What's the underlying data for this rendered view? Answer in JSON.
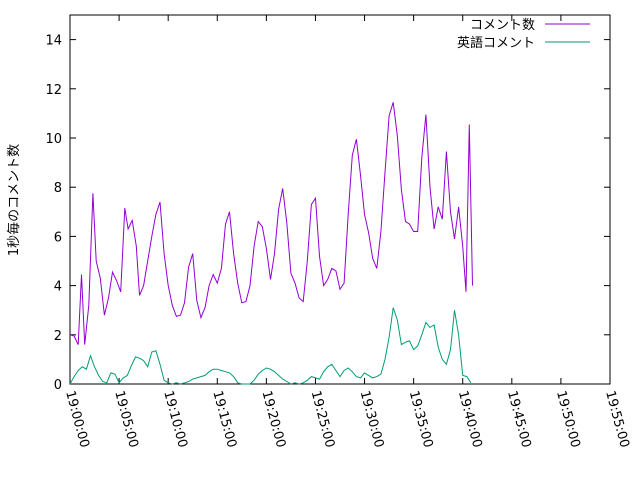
{
  "chart_data": {
    "type": "line",
    "title": "",
    "xlabel": "",
    "ylabel": "1秒毎のコメント数",
    "xlim": [
      "19:00:00",
      "19:55:00"
    ],
    "ylim": [
      0,
      15
    ],
    "xticks": [
      "19:00:00",
      "19:05:00",
      "19:10:00",
      "19:15:00",
      "19:20:00",
      "19:25:00",
      "19:30:00",
      "19:35:00",
      "19:40:00",
      "19:45:00",
      "19:50:00",
      "19:55:00"
    ],
    "yticks": [
      0,
      2,
      4,
      6,
      8,
      10,
      12,
      14
    ],
    "grid": false,
    "legend_position": "top-right",
    "series": [
      {
        "name": "コメント数",
        "color": "#9400d3",
        "points": [
          [
            "19:00:00",
            2.0
          ],
          [
            "19:00:25",
            1.95
          ],
          [
            "19:00:50",
            1.6
          ],
          [
            "19:01:10",
            4.45
          ],
          [
            "19:01:30",
            1.6
          ],
          [
            "19:01:55",
            3.2
          ],
          [
            "19:02:20",
            7.75
          ],
          [
            "19:02:40",
            5.0
          ],
          [
            "19:03:05",
            4.3
          ],
          [
            "19:03:30",
            2.8
          ],
          [
            "19:03:55",
            3.5
          ],
          [
            "19:04:20",
            4.55
          ],
          [
            "19:04:45",
            4.2
          ],
          [
            "19:05:10",
            3.75
          ],
          [
            "19:05:35",
            7.15
          ],
          [
            "19:05:55",
            6.3
          ],
          [
            "19:06:20",
            6.65
          ],
          [
            "19:06:45",
            5.6
          ],
          [
            "19:07:05",
            3.6
          ],
          [
            "19:07:30",
            4.0
          ],
          [
            "19:07:55",
            5.0
          ],
          [
            "19:08:20",
            6.0
          ],
          [
            "19:08:45",
            6.9
          ],
          [
            "19:09:10",
            7.4
          ],
          [
            "19:09:35",
            5.3
          ],
          [
            "19:10:00",
            4.0
          ],
          [
            "19:10:25",
            3.2
          ],
          [
            "19:10:50",
            2.75
          ],
          [
            "19:11:15",
            2.8
          ],
          [
            "19:11:40",
            3.3
          ],
          [
            "19:12:05",
            4.75
          ],
          [
            "19:12:30",
            5.3
          ],
          [
            "19:12:55",
            3.4
          ],
          [
            "19:13:20",
            2.7
          ],
          [
            "19:13:45",
            3.1
          ],
          [
            "19:14:10",
            4.0
          ],
          [
            "19:14:35",
            4.45
          ],
          [
            "19:15:00",
            4.1
          ],
          [
            "19:15:25",
            4.7
          ],
          [
            "19:15:50",
            6.5
          ],
          [
            "19:16:15",
            7.0
          ],
          [
            "19:16:40",
            5.3
          ],
          [
            "19:17:05",
            4.1
          ],
          [
            "19:17:30",
            3.3
          ],
          [
            "19:17:55",
            3.35
          ],
          [
            "19:18:20",
            4.0
          ],
          [
            "19:18:45",
            5.6
          ],
          [
            "19:19:10",
            6.6
          ],
          [
            "19:19:35",
            6.4
          ],
          [
            "19:20:00",
            5.5
          ],
          [
            "19:20:25",
            4.25
          ],
          [
            "19:20:50",
            5.3
          ],
          [
            "19:21:15",
            7.1
          ],
          [
            "19:21:40",
            7.95
          ],
          [
            "19:22:05",
            6.55
          ],
          [
            "19:22:30",
            4.5
          ],
          [
            "19:22:55",
            4.1
          ],
          [
            "19:23:20",
            3.5
          ],
          [
            "19:23:45",
            3.35
          ],
          [
            "19:24:10",
            5.0
          ],
          [
            "19:24:35",
            7.3
          ],
          [
            "19:25:00",
            7.55
          ],
          [
            "19:25:25",
            5.2
          ],
          [
            "19:25:50",
            4.0
          ],
          [
            "19:26:15",
            4.25
          ],
          [
            "19:26:40",
            4.7
          ],
          [
            "19:27:05",
            4.6
          ],
          [
            "19:27:30",
            3.85
          ],
          [
            "19:27:55",
            4.1
          ],
          [
            "19:28:20",
            6.9
          ],
          [
            "19:28:45",
            9.3
          ],
          [
            "19:29:10",
            9.95
          ],
          [
            "19:29:35",
            8.5
          ],
          [
            "19:30:00",
            6.9
          ],
          [
            "19:30:25",
            6.15
          ],
          [
            "19:30:50",
            5.1
          ],
          [
            "19:31:15",
            4.7
          ],
          [
            "19:31:40",
            6.2
          ],
          [
            "19:32:05",
            8.6
          ],
          [
            "19:32:30",
            10.9
          ],
          [
            "19:32:55",
            11.45
          ],
          [
            "19:33:20",
            10.1
          ],
          [
            "19:33:45",
            7.9
          ],
          [
            "19:34:10",
            6.6
          ],
          [
            "19:34:35",
            6.5
          ],
          [
            "19:35:00",
            6.2
          ],
          [
            "19:35:25",
            6.2
          ],
          [
            "19:35:50",
            9.2
          ],
          [
            "19:36:15",
            10.95
          ],
          [
            "19:36:40",
            8.0
          ],
          [
            "19:37:05",
            6.3
          ],
          [
            "19:37:30",
            7.2
          ],
          [
            "19:37:55",
            6.7
          ],
          [
            "19:38:20",
            9.45
          ],
          [
            "19:38:45",
            7.0
          ],
          [
            "19:39:10",
            5.9
          ],
          [
            "19:39:35",
            7.2
          ],
          [
            "19:40:00",
            5.6
          ],
          [
            "19:40:20",
            3.75
          ],
          [
            "19:40:40",
            10.55
          ],
          [
            "19:41:00",
            4.0
          ]
        ]
      },
      {
        "name": "英語コメント",
        "color": "#009e73",
        "points": [
          [
            "19:00:00",
            0.0
          ],
          [
            "19:00:25",
            0.3
          ],
          [
            "19:00:50",
            0.55
          ],
          [
            "19:01:15",
            0.7
          ],
          [
            "19:01:40",
            0.6
          ],
          [
            "19:02:05",
            1.15
          ],
          [
            "19:02:30",
            0.7
          ],
          [
            "19:02:55",
            0.35
          ],
          [
            "19:03:20",
            0.1
          ],
          [
            "19:03:45",
            0.05
          ],
          [
            "19:04:10",
            0.45
          ],
          [
            "19:04:35",
            0.4
          ],
          [
            "19:05:00",
            0.05
          ],
          [
            "19:05:25",
            0.25
          ],
          [
            "19:05:50",
            0.35
          ],
          [
            "19:06:15",
            0.75
          ],
          [
            "19:06:40",
            1.1
          ],
          [
            "19:07:05",
            1.05
          ],
          [
            "19:07:30",
            0.95
          ],
          [
            "19:07:55",
            0.7
          ],
          [
            "19:08:20",
            1.3
          ],
          [
            "19:08:45",
            1.35
          ],
          [
            "19:09:10",
            0.8
          ],
          [
            "19:09:35",
            0.15
          ],
          [
            "19:10:00",
            0.05
          ],
          [
            "19:10:25",
            0.0
          ],
          [
            "19:10:50",
            0.05
          ],
          [
            "19:11:15",
            0.0
          ],
          [
            "19:11:40",
            0.05
          ],
          [
            "19:12:05",
            0.1
          ],
          [
            "19:12:30",
            0.2
          ],
          [
            "19:12:55",
            0.25
          ],
          [
            "19:13:20",
            0.3
          ],
          [
            "19:13:45",
            0.35
          ],
          [
            "19:14:10",
            0.5
          ],
          [
            "19:14:35",
            0.6
          ],
          [
            "19:15:00",
            0.6
          ],
          [
            "19:15:25",
            0.55
          ],
          [
            "19:15:50",
            0.5
          ],
          [
            "19:16:15",
            0.45
          ],
          [
            "19:16:40",
            0.3
          ],
          [
            "19:17:05",
            0.05
          ],
          [
            "19:17:30",
            0.0
          ],
          [
            "19:17:55",
            0.0
          ],
          [
            "19:18:20",
            0.0
          ],
          [
            "19:18:45",
            0.15
          ],
          [
            "19:19:10",
            0.4
          ],
          [
            "19:19:35",
            0.55
          ],
          [
            "19:20:00",
            0.65
          ],
          [
            "19:20:25",
            0.6
          ],
          [
            "19:20:50",
            0.5
          ],
          [
            "19:21:15",
            0.35
          ],
          [
            "19:21:40",
            0.2
          ],
          [
            "19:22:05",
            0.1
          ],
          [
            "19:22:30",
            0.0
          ],
          [
            "19:22:55",
            0.05
          ],
          [
            "19:23:20",
            0.0
          ],
          [
            "19:23:45",
            0.05
          ],
          [
            "19:24:10",
            0.15
          ],
          [
            "19:24:35",
            0.3
          ],
          [
            "19:25:00",
            0.25
          ],
          [
            "19:25:25",
            0.2
          ],
          [
            "19:25:50",
            0.5
          ],
          [
            "19:26:15",
            0.7
          ],
          [
            "19:26:40",
            0.8
          ],
          [
            "19:27:05",
            0.55
          ],
          [
            "19:27:30",
            0.3
          ],
          [
            "19:27:55",
            0.55
          ],
          [
            "19:28:20",
            0.65
          ],
          [
            "19:28:45",
            0.5
          ],
          [
            "19:29:10",
            0.3
          ],
          [
            "19:29:35",
            0.25
          ],
          [
            "19:30:00",
            0.45
          ],
          [
            "19:30:25",
            0.35
          ],
          [
            "19:30:50",
            0.25
          ],
          [
            "19:31:15",
            0.3
          ],
          [
            "19:31:40",
            0.4
          ],
          [
            "19:32:05",
            1.0
          ],
          [
            "19:32:30",
            1.9
          ],
          [
            "19:32:55",
            3.1
          ],
          [
            "19:33:20",
            2.6
          ],
          [
            "19:33:45",
            1.6
          ],
          [
            "19:34:10",
            1.7
          ],
          [
            "19:34:35",
            1.75
          ],
          [
            "19:35:00",
            1.4
          ],
          [
            "19:35:25",
            1.55
          ],
          [
            "19:35:50",
            2.0
          ],
          [
            "19:36:15",
            2.5
          ],
          [
            "19:36:40",
            2.3
          ],
          [
            "19:37:05",
            2.4
          ],
          [
            "19:37:30",
            1.5
          ],
          [
            "19:37:55",
            1.0
          ],
          [
            "19:38:20",
            0.8
          ],
          [
            "19:38:45",
            1.4
          ],
          [
            "19:39:10",
            3.0
          ],
          [
            "19:39:35",
            2.0
          ],
          [
            "19:40:00",
            0.35
          ],
          [
            "19:40:25",
            0.3
          ],
          [
            "19:40:50",
            0.05
          ]
        ]
      }
    ]
  }
}
